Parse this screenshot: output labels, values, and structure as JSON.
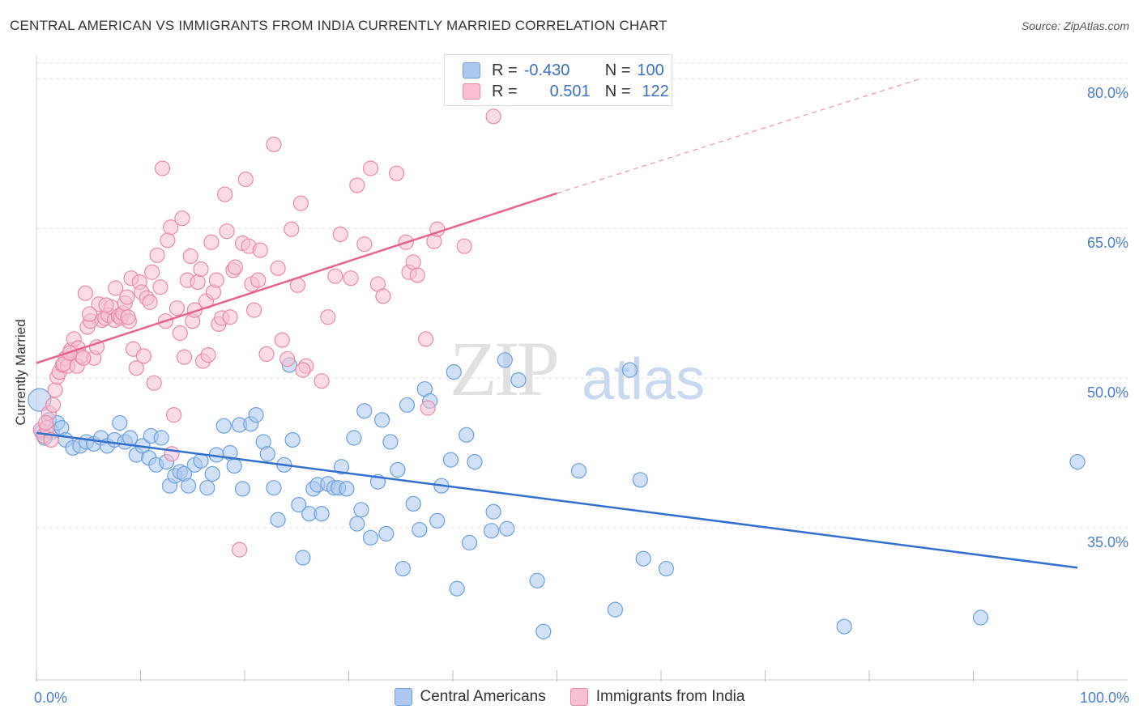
{
  "title": "CENTRAL AMERICAN VS IMMIGRANTS FROM INDIA CURRENTLY MARRIED CORRELATION CHART",
  "source": "Source: ZipAtlas.com",
  "watermark": {
    "zip": "ZIP",
    "atlas": "atlas"
  },
  "legend_top": {
    "rows": [
      {
        "r_label": "R =",
        "r_value": "-0.430",
        "n_label": "N =",
        "n_value": "100",
        "color": "#aac8f0",
        "edge": "#6a9fdc"
      },
      {
        "r_label": "R =",
        "r_value": "0.501",
        "n_label": "N =",
        "n_value": "122",
        "color": "#f8c0d2",
        "edge": "#e888a8"
      }
    ]
  },
  "chart_data": {
    "type": "scatter",
    "title": "CENTRAL AMERICAN VS IMMIGRANTS FROM INDIA CURRENTLY MARRIED CORRELATION CHART",
    "xlabel": "",
    "ylabel": "Currently Married",
    "xlim": [
      0,
      100
    ],
    "ylim": [
      20,
      83
    ],
    "x_tick_labels": [
      "0.0%",
      "100.0%"
    ],
    "y_tick_labels": [
      "35.0%",
      "50.0%",
      "65.0%",
      "80.0%"
    ],
    "y_ticks": [
      35,
      50,
      65,
      80
    ],
    "grid": true,
    "legend_position": "bottom-center",
    "series": [
      {
        "name": "Central Americans",
        "color": "#6a9fdc",
        "fill": "#aac8f0",
        "line_color": "#2f6fd0",
        "trend": {
          "x0": 0,
          "y0": 44.5,
          "x1": 100,
          "y1": 31.0
        },
        "points": [
          [
            0.3,
            47.8
          ],
          [
            0.5,
            44.6
          ],
          [
            1.2,
            45.8
          ],
          [
            1.5,
            44.6
          ],
          [
            2.0,
            45.5
          ],
          [
            2.4,
            45.0
          ],
          [
            2.8,
            43.8
          ],
          [
            3.5,
            43.0
          ],
          [
            4.2,
            43.2
          ],
          [
            4.8,
            43.6
          ],
          [
            5.5,
            43.4
          ],
          [
            6.2,
            44.0
          ],
          [
            6.8,
            43.2
          ],
          [
            7.5,
            43.8
          ],
          [
            8.0,
            45.5
          ],
          [
            8.5,
            43.6
          ],
          [
            9.0,
            44.0
          ],
          [
            9.6,
            42.3
          ],
          [
            10.2,
            43.2
          ],
          [
            10.8,
            42.0
          ],
          [
            11.0,
            44.2
          ],
          [
            11.5,
            41.3
          ],
          [
            12.0,
            44.0
          ],
          [
            12.5,
            41.6
          ],
          [
            12.8,
            39.2
          ],
          [
            13.3,
            40.2
          ],
          [
            13.8,
            40.6
          ],
          [
            14.2,
            40.4
          ],
          [
            14.6,
            39.2
          ],
          [
            15.2,
            41.3
          ],
          [
            15.8,
            41.7
          ],
          [
            16.4,
            39.0
          ],
          [
            16.9,
            40.4
          ],
          [
            17.3,
            42.3
          ],
          [
            18.0,
            45.2
          ],
          [
            18.6,
            42.5
          ],
          [
            19.0,
            41.2
          ],
          [
            19.5,
            45.3
          ],
          [
            19.8,
            38.9
          ],
          [
            20.6,
            45.4
          ],
          [
            21.1,
            46.3
          ],
          [
            21.8,
            43.6
          ],
          [
            22.2,
            42.4
          ],
          [
            22.8,
            39.0
          ],
          [
            23.2,
            35.8
          ],
          [
            23.8,
            41.3
          ],
          [
            24.3,
            51.3
          ],
          [
            24.6,
            43.8
          ],
          [
            25.2,
            37.3
          ],
          [
            25.6,
            32.0
          ],
          [
            26.2,
            36.4
          ],
          [
            26.6,
            38.9
          ],
          [
            27.0,
            39.3
          ],
          [
            27.4,
            36.4
          ],
          [
            28.0,
            39.4
          ],
          [
            28.6,
            39.0
          ],
          [
            29.0,
            39.0
          ],
          [
            29.3,
            41.1
          ],
          [
            29.8,
            38.9
          ],
          [
            30.5,
            44.0
          ],
          [
            30.8,
            35.4
          ],
          [
            31.2,
            36.8
          ],
          [
            31.5,
            46.7
          ],
          [
            32.1,
            34.0
          ],
          [
            32.8,
            39.6
          ],
          [
            33.2,
            45.8
          ],
          [
            33.6,
            34.4
          ],
          [
            34.0,
            43.6
          ],
          [
            34.7,
            40.8
          ],
          [
            35.2,
            30.9
          ],
          [
            35.6,
            47.3
          ],
          [
            36.2,
            37.4
          ],
          [
            36.8,
            34.8
          ],
          [
            37.3,
            48.9
          ],
          [
            37.8,
            47.7
          ],
          [
            38.5,
            35.7
          ],
          [
            38.9,
            39.2
          ],
          [
            39.8,
            41.8
          ],
          [
            40.1,
            50.6
          ],
          [
            40.4,
            28.9
          ],
          [
            41.3,
            44.3
          ],
          [
            41.6,
            33.5
          ],
          [
            42.1,
            41.6
          ],
          [
            43.7,
            34.7
          ],
          [
            43.9,
            36.6
          ],
          [
            45.0,
            51.8
          ],
          [
            45.2,
            34.9
          ],
          [
            46.3,
            49.8
          ],
          [
            48.1,
            29.7
          ],
          [
            48.7,
            24.6
          ],
          [
            52.1,
            40.7
          ],
          [
            55.6,
            26.8
          ],
          [
            57.0,
            50.8
          ],
          [
            58.0,
            39.8
          ],
          [
            58.3,
            31.9
          ],
          [
            60.5,
            30.9
          ],
          [
            77.6,
            25.1
          ],
          [
            90.7,
            26.0
          ],
          [
            100.0,
            41.6
          ],
          [
            0.8,
            44.0
          ]
        ]
      },
      {
        "name": "Immigrants from India",
        "color": "#e888a8",
        "fill": "#f8c0d2",
        "line_color": "#e8628e",
        "trend": {
          "x0": 0,
          "y0": 51.5,
          "x1": 50,
          "y1": 68.5
        },
        "trend_dashed_to": {
          "x": 85,
          "y": 80.0
        },
        "points": [
          [
            0.4,
            44.8
          ],
          [
            0.7,
            44.2
          ],
          [
            1.0,
            45.0
          ],
          [
            1.2,
            46.5
          ],
          [
            1.6,
            47.3
          ],
          [
            1.8,
            48.8
          ],
          [
            2.0,
            50.1
          ],
          [
            2.2,
            50.6
          ],
          [
            2.5,
            51.3
          ],
          [
            2.8,
            52.0
          ],
          [
            3.0,
            51.2
          ],
          [
            3.3,
            52.8
          ],
          [
            3.6,
            53.9
          ],
          [
            3.9,
            51.2
          ],
          [
            4.0,
            53.0
          ],
          [
            4.3,
            52.2
          ],
          [
            4.7,
            58.5
          ],
          [
            4.9,
            55.1
          ],
          [
            5.2,
            55.7
          ],
          [
            5.5,
            52.0
          ],
          [
            5.8,
            53.1
          ],
          [
            6.0,
            57.4
          ],
          [
            6.3,
            55.8
          ],
          [
            6.6,
            56.0
          ],
          [
            6.9,
            56.3
          ],
          [
            7.2,
            57.1
          ],
          [
            7.5,
            55.8
          ],
          [
            7.6,
            59.0
          ],
          [
            7.9,
            56.2
          ],
          [
            8.1,
            56.0
          ],
          [
            8.3,
            56.5
          ],
          [
            8.5,
            57.5
          ],
          [
            8.7,
            58.1
          ],
          [
            8.9,
            55.7
          ],
          [
            9.1,
            60.0
          ],
          [
            9.3,
            52.9
          ],
          [
            9.6,
            51.0
          ],
          [
            9.9,
            59.6
          ],
          [
            10.1,
            58.6
          ],
          [
            10.3,
            52.2
          ],
          [
            10.6,
            58.0
          ],
          [
            10.9,
            57.6
          ],
          [
            11.1,
            60.6
          ],
          [
            11.3,
            49.5
          ],
          [
            11.6,
            62.3
          ],
          [
            11.9,
            59.1
          ],
          [
            12.1,
            71.0
          ],
          [
            12.4,
            55.7
          ],
          [
            12.6,
            63.8
          ],
          [
            12.9,
            65.1
          ],
          [
            13.2,
            46.3
          ],
          [
            13.5,
            57.0
          ],
          [
            13.8,
            54.5
          ],
          [
            14.0,
            66.0
          ],
          [
            14.2,
            52.1
          ],
          [
            14.5,
            59.8
          ],
          [
            14.8,
            62.2
          ],
          [
            15.0,
            55.7
          ],
          [
            15.2,
            56.8
          ],
          [
            15.5,
            59.6
          ],
          [
            15.8,
            60.9
          ],
          [
            16.0,
            51.7
          ],
          [
            16.3,
            57.7
          ],
          [
            16.5,
            52.3
          ],
          [
            16.8,
            63.6
          ],
          [
            17.0,
            58.6
          ],
          [
            17.3,
            59.8
          ],
          [
            17.5,
            55.4
          ],
          [
            17.8,
            56.0
          ],
          [
            18.1,
            68.4
          ],
          [
            18.3,
            64.7
          ],
          [
            18.6,
            56.1
          ],
          [
            18.9,
            60.8
          ],
          [
            19.1,
            61.1
          ],
          [
            19.5,
            32.8
          ],
          [
            19.8,
            63.5
          ],
          [
            20.1,
            69.9
          ],
          [
            20.4,
            63.2
          ],
          [
            20.7,
            59.4
          ],
          [
            20.9,
            56.8
          ],
          [
            21.3,
            59.8
          ],
          [
            21.5,
            62.8
          ],
          [
            22.1,
            52.4
          ],
          [
            22.8,
            73.4
          ],
          [
            23.2,
            61.0
          ],
          [
            23.6,
            53.8
          ],
          [
            24.1,
            51.9
          ],
          [
            24.5,
            64.9
          ],
          [
            25.1,
            59.3
          ],
          [
            25.4,
            67.5
          ],
          [
            25.9,
            51.2
          ],
          [
            27.4,
            49.7
          ],
          [
            28.0,
            56.1
          ],
          [
            28.7,
            60.2
          ],
          [
            29.2,
            64.4
          ],
          [
            30.2,
            60.0
          ],
          [
            30.8,
            69.3
          ],
          [
            31.5,
            63.4
          ],
          [
            32.1,
            71.0
          ],
          [
            32.8,
            59.4
          ],
          [
            33.3,
            58.2
          ],
          [
            34.6,
            70.5
          ],
          [
            35.5,
            63.6
          ],
          [
            35.8,
            60.6
          ],
          [
            36.2,
            61.6
          ],
          [
            36.6,
            60.3
          ],
          [
            37.4,
            53.9
          ],
          [
            37.6,
            47.0
          ],
          [
            38.2,
            63.7
          ],
          [
            38.5,
            64.9
          ],
          [
            41.1,
            63.2
          ],
          [
            43.9,
            76.2
          ],
          [
            0.9,
            45.5
          ],
          [
            1.4,
            43.8
          ],
          [
            2.6,
            51.4
          ],
          [
            3.2,
            52.5
          ],
          [
            4.5,
            52.0
          ],
          [
            5.1,
            56.4
          ],
          [
            6.7,
            57.3
          ],
          [
            8.8,
            56.1
          ],
          [
            13.0,
            42.4
          ],
          [
            25.6,
            50.8
          ]
        ]
      }
    ]
  },
  "bottom_legend": [
    {
      "label": "Central Americans",
      "color": "#aac8f0",
      "edge": "#6a9fdc"
    },
    {
      "label": "Immigrants from India",
      "color": "#f8c0d2",
      "edge": "#e888a8"
    }
  ]
}
